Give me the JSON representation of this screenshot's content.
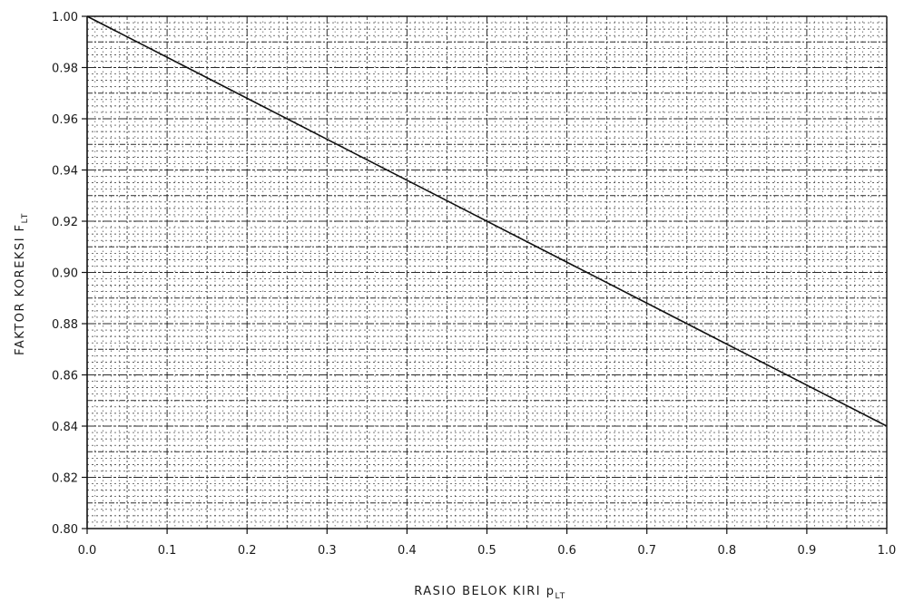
{
  "chart_data": {
    "type": "line",
    "xlabel": {
      "main": "RASIO BELOK KIRI p",
      "subscript": "LT"
    },
    "ylabel": {
      "main": "FAKTOR KOREKSI F",
      "subscript": "LT"
    },
    "xlim": [
      0.0,
      1.0
    ],
    "ylim": [
      0.8,
      1.0
    ],
    "x_ticks": [
      0.0,
      0.1,
      0.2,
      0.3,
      0.4,
      0.5,
      0.6,
      0.7,
      0.8,
      0.9,
      1.0
    ],
    "x_tick_labels": [
      "0.0",
      "0.1",
      "0.2",
      "0.3",
      "0.4",
      "0.5",
      "0.6",
      "0.7",
      "0.8",
      "0.9",
      "1.0"
    ],
    "y_ticks": [
      0.8,
      0.82,
      0.84,
      0.86,
      0.88,
      0.9,
      0.92,
      0.94,
      0.96,
      0.98,
      1.0
    ],
    "y_tick_labels": [
      "0.80",
      "0.82",
      "0.84",
      "0.86",
      "0.88",
      "0.90",
      "0.92",
      "0.94",
      "0.96",
      "0.98",
      "1.00"
    ],
    "grid": true,
    "series": [
      {
        "x": [
          0.0,
          1.0
        ],
        "y": [
          1.0,
          0.84
        ]
      }
    ],
    "colors": {
      "line": "#111111",
      "axis": "#111111",
      "grid": "#2a2a2a",
      "text": "#1a1a1a"
    }
  }
}
